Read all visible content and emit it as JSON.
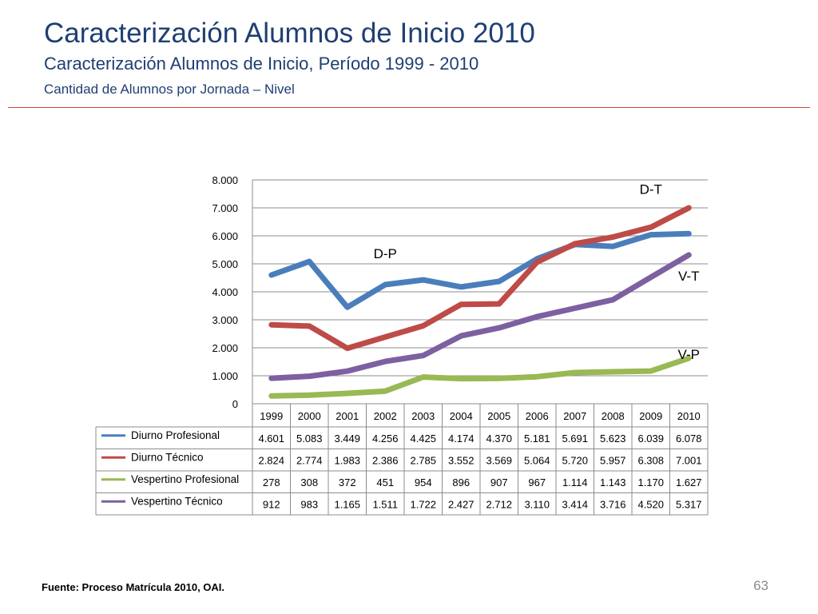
{
  "slide": {
    "title": "Caracterización Alumnos de Inicio 2010",
    "subtitle": "Caracterización Alumnos de Inicio, Período 1999 - 2010",
    "subsubtitle": "Cantidad de Alumnos por Jornada – Nivel",
    "source": "Fuente: Proceso Matrícula 2010, OAI.",
    "page_number": "63",
    "accent_color": "#d9433a"
  },
  "chart_data": {
    "type": "line",
    "title": "",
    "xlabel": "",
    "ylabel": "",
    "ylim": [
      0,
      8000
    ],
    "yticks": [
      0,
      1000,
      2000,
      3000,
      4000,
      5000,
      6000,
      7000,
      8000
    ],
    "ytick_labels": [
      "0",
      "1.000",
      "2.000",
      "3.000",
      "4.000",
      "5.000",
      "6.000",
      "7.000",
      "8.000"
    ],
    "grid": true,
    "legend": "data-table",
    "categories": [
      "1999",
      "2000",
      "2001",
      "2002",
      "2003",
      "2004",
      "2005",
      "2006",
      "2007",
      "2008",
      "2009",
      "2010"
    ],
    "series": [
      {
        "name": "Diurno Profesional",
        "color": "#4a7ebb",
        "values": [
          4601,
          5083,
          3449,
          4256,
          4425,
          4174,
          4370,
          5181,
          5691,
          5623,
          6039,
          6078
        ],
        "labels": [
          "4.601",
          "5.083",
          "3.449",
          "4.256",
          "4.425",
          "4.174",
          "4.370",
          "5.181",
          "5.691",
          "5.623",
          "6.039",
          "6.078"
        ]
      },
      {
        "name": "Diurno Técnico",
        "color": "#be4b48",
        "values": [
          2824,
          2774,
          1983,
          2386,
          2785,
          3552,
          3569,
          5064,
          5720,
          5957,
          6308,
          7001
        ],
        "labels": [
          "2.824",
          "2.774",
          "1.983",
          "2.386",
          "2.785",
          "3.552",
          "3.569",
          "5.064",
          "5.720",
          "5.957",
          "6.308",
          "7.001"
        ]
      },
      {
        "name": "Vespertino Profesional",
        "color": "#98b954",
        "values": [
          278,
          308,
          372,
          451,
          954,
          896,
          907,
          967,
          1114,
          1143,
          1170,
          1627
        ],
        "labels": [
          "278",
          "308",
          "372",
          "451",
          "954",
          "896",
          "907",
          "967",
          "1.114",
          "1.143",
          "1.170",
          "1.627"
        ]
      },
      {
        "name": "Vespertino Técnico",
        "color": "#7d60a0",
        "values": [
          912,
          983,
          1165,
          1511,
          1722,
          2427,
          2712,
          3110,
          3414,
          3716,
          4520,
          5317
        ],
        "labels": [
          "912",
          "983",
          "1.165",
          "1.511",
          "1.722",
          "2.427",
          "2.712",
          "3.110",
          "3.414",
          "3.716",
          "4.520",
          "5.317"
        ]
      }
    ],
    "annotations": [
      {
        "text": "D-P",
        "x": "2002",
        "y": 5200
      },
      {
        "text": "D-T",
        "x": "2009",
        "y": 7500
      },
      {
        "text": "V-T",
        "x": "2010",
        "y": 4400
      },
      {
        "text": "V-P",
        "x": "2010",
        "y": 1600
      }
    ]
  }
}
